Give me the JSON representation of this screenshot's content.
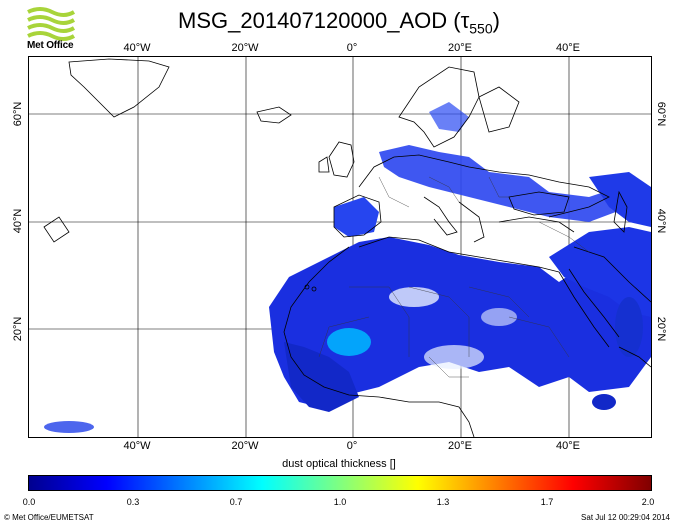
{
  "header": {
    "title_main": "MSG_201407120000_AOD (τ",
    "title_sub": "550",
    "title_end": ")",
    "logo_text": "Met Office"
  },
  "axes": {
    "lon_top": [
      "40°W",
      "20°W",
      "0°",
      "20°E",
      "40°E"
    ],
    "lon_bottom": [
      "40°W",
      "20°W",
      "0°",
      "20°E",
      "40°E"
    ],
    "lat_left": [
      "60°N",
      "40°N",
      "20°N"
    ],
    "lat_right": [
      "60°N",
      "40°N",
      "20°N"
    ]
  },
  "colorbar": {
    "title": "dust optical thickness []",
    "ticks": [
      "0.0",
      "0.3",
      "0.7",
      "1.0",
      "1.3",
      "1.7",
      "2.0"
    ],
    "colors": [
      "#00008f",
      "#0000ff",
      "#0080ff",
      "#00ffff",
      "#80ff80",
      "#ffff00",
      "#ff8000",
      "#ff0000",
      "#800000"
    ]
  },
  "footer": {
    "left": "© Met Office/EUMETSAT",
    "right": "Sat Jul 12 00:29:04 2014"
  },
  "colors": {
    "land_outline": "#000000",
    "aod_low": "#1a2fe0",
    "aod_high": "#00c0ff"
  }
}
